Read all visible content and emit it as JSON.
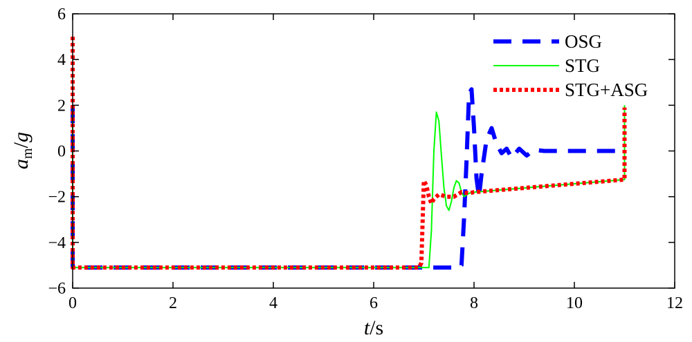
{
  "chart_data": {
    "type": "line",
    "title": "",
    "xlabel_italic": "t",
    "xlabel_rest": "/s",
    "ylabel_italic_a": "a",
    "ylabel_sub": "m",
    "ylabel_slash": "/",
    "ylabel_italic_g": "g",
    "xlim": [
      0,
      12
    ],
    "ylim": [
      -6,
      6
    ],
    "xticks": [
      0,
      2,
      4,
      6,
      8,
      10,
      12
    ],
    "xtick_labels": [
      "0",
      "2",
      "4",
      "6",
      "8",
      "10",
      "12"
    ],
    "yticks": [
      -6,
      -4,
      -2,
      0,
      2,
      4,
      6
    ],
    "ytick_labels": [
      "−6",
      "−4",
      "−2",
      "0",
      "2",
      "4",
      "6"
    ],
    "grid": false,
    "legend_position": "top-right",
    "series": [
      {
        "name": "OSG",
        "color": "#0000ff",
        "style": "dashed",
        "points": [
          [
            0,
            2.0
          ],
          [
            0,
            -5.1
          ],
          [
            7.2,
            -5.1
          ],
          [
            7.7,
            -5.1
          ],
          [
            7.75,
            -5.0
          ],
          [
            7.8,
            -3.0
          ],
          [
            7.85,
            -0.5
          ],
          [
            7.9,
            2.5
          ],
          [
            7.95,
            2.7
          ],
          [
            8.0,
            1.0
          ],
          [
            8.05,
            -1.2
          ],
          [
            8.1,
            -2.0
          ],
          [
            8.15,
            -1.0
          ],
          [
            8.25,
            0.5
          ],
          [
            8.35,
            1.0
          ],
          [
            8.45,
            0.3
          ],
          [
            8.55,
            -0.1
          ],
          [
            8.65,
            0.1
          ],
          [
            8.75,
            -0.3
          ],
          [
            8.9,
            0.1
          ],
          [
            9.05,
            -0.2
          ],
          [
            9.2,
            0.05
          ],
          [
            9.4,
            0.0
          ],
          [
            11.0,
            0.0
          ]
        ]
      },
      {
        "name": "STG",
        "color": "#00ff00",
        "style": "solid",
        "points": [
          [
            0,
            2.0
          ],
          [
            0,
            -5.1
          ],
          [
            7.1,
            -5.1
          ],
          [
            7.15,
            -3.5
          ],
          [
            7.2,
            0.0
          ],
          [
            7.25,
            1.7
          ],
          [
            7.3,
            1.3
          ],
          [
            7.35,
            -0.2
          ],
          [
            7.4,
            -1.6
          ],
          [
            7.45,
            -2.4
          ],
          [
            7.5,
            -2.6
          ],
          [
            7.55,
            -2.2
          ],
          [
            7.6,
            -1.6
          ],
          [
            7.65,
            -1.3
          ],
          [
            7.7,
            -1.4
          ],
          [
            7.75,
            -1.8
          ],
          [
            7.8,
            -2.0
          ],
          [
            7.9,
            -1.85
          ],
          [
            8.0,
            -1.8
          ],
          [
            11.0,
            -1.25
          ],
          [
            11.0,
            2.0
          ]
        ]
      },
      {
        "name": "STG+ASG",
        "color": "#ff0000",
        "style": "dotted",
        "points": [
          [
            0,
            5.0
          ],
          [
            0,
            -5.1
          ],
          [
            6.9,
            -5.1
          ],
          [
            6.95,
            -4.9
          ],
          [
            7.0,
            -1.3
          ],
          [
            7.05,
            -1.5
          ],
          [
            7.1,
            -2.0
          ],
          [
            7.15,
            -2.3
          ],
          [
            7.2,
            -2.1
          ],
          [
            7.3,
            -1.9
          ],
          [
            7.45,
            -2.0
          ],
          [
            7.6,
            -2.0
          ],
          [
            7.75,
            -1.8
          ],
          [
            7.9,
            -1.85
          ],
          [
            8.0,
            -1.8
          ],
          [
            11.0,
            -1.25
          ],
          [
            11.0,
            1.9
          ]
        ]
      }
    ]
  }
}
